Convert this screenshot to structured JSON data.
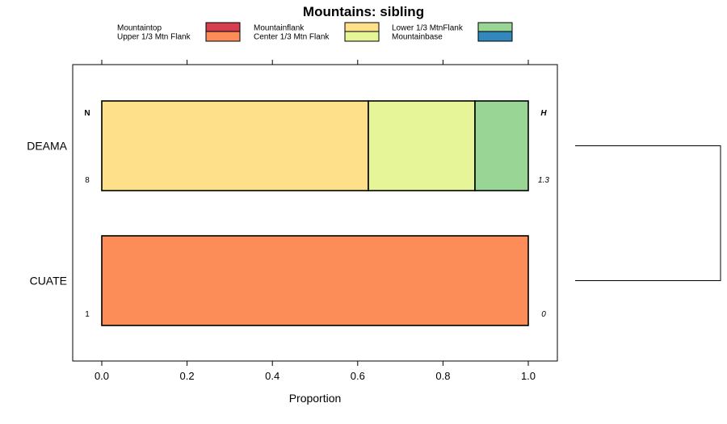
{
  "chart_data": {
    "type": "bar",
    "orientation": "horizontal",
    "stacked": true,
    "title": "Mountains: sibling",
    "xlabel": "Proportion",
    "ylabel": "",
    "xlim": [
      0,
      1
    ],
    "x_ticks": [
      "0.0",
      "0.2",
      "0.4",
      "0.6",
      "0.8",
      "1.0"
    ],
    "x_tick_values": [
      0,
      0.2,
      0.4,
      0.6,
      0.8,
      1.0
    ],
    "grid": false,
    "legend_position": "top",
    "legend": [
      {
        "name": "Mountaintop",
        "color": "#d53e4f"
      },
      {
        "name": "Upper 1/3 Mtn Flank",
        "color": "#fc8d59"
      },
      {
        "name": "Mountainflank",
        "color": "#fee08b"
      },
      {
        "name": "Center 1/3 Mtn Flank",
        "color": "#e6f598"
      },
      {
        "name": "Lower 1/3 MtnFlank",
        "color": "#99d594"
      },
      {
        "name": "Mountainbase",
        "color": "#3288bd"
      }
    ],
    "categories": [
      "DEAMA",
      "CUATE"
    ],
    "series": [
      {
        "name": "Mountaintop",
        "values": [
          0,
          0
        ]
      },
      {
        "name": "Upper 1/3 Mtn Flank",
        "values": [
          0,
          1.0
        ]
      },
      {
        "name": "Mountainflank",
        "values": [
          0.625,
          0
        ]
      },
      {
        "name": "Center 1/3 Mtn Flank",
        "values": [
          0.25,
          0
        ]
      },
      {
        "name": "Lower 1/3 MtnFlank",
        "values": [
          0.125,
          0
        ]
      },
      {
        "name": "Mountainbase",
        "values": [
          0,
          0
        ]
      }
    ],
    "annotations": {
      "n_header": "N",
      "h_header": "H",
      "n_values": [
        "8",
        "1"
      ],
      "h_values": [
        "1.3",
        "0"
      ]
    },
    "dendrogram": true
  }
}
